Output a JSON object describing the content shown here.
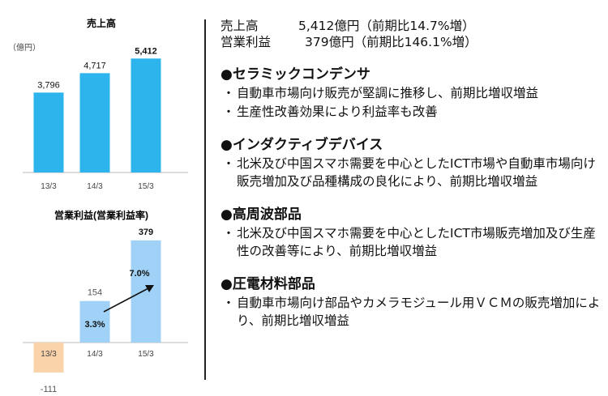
{
  "summary": [
    {
      "label": "売上高",
      "value": "5,412億円（前期比14.7%増）"
    },
    {
      "label": "営業利益",
      "value": "379億円（前期比146.1%増）"
    }
  ],
  "sections": [
    {
      "title": "●セラミックコンデンサ",
      "bullets": [
        "自動車市場向け販売が堅調に推移し、前期比増収増益",
        "生産性改善効果により利益率も改善"
      ]
    },
    {
      "title": "●インダクティブデバイス",
      "bullets": [
        "北米及び中国スマホ需要を中心としたICT市場や自動車市場向け販売増加及び品種構成の良化により、前期比増収増益"
      ]
    },
    {
      "title": "●高周波部品",
      "bullets": [
        "北米及び中国スマホ需要を中心としたICT市場販売増加及び生産性の改善等により、前期比増収増益"
      ]
    },
    {
      "title": "●圧電材料部品",
      "bullets": [
        "自動車市場向け部品やカメラモジュール用ＶＣＭの販売増加により、前期比増収増益"
      ]
    }
  ],
  "bullet_mark": "・",
  "colors": {
    "bar_blue": "#2EB4EC",
    "bar_light_blue": "#9FD2F6",
    "bar_negative": "#FAD3AA",
    "text": "#111111"
  },
  "chart_data": [
    {
      "type": "bar",
      "title": "売上高",
      "unit_label": "（億円）",
      "categories": [
        "13/3",
        "14/3",
        "15/3"
      ],
      "values": [
        3796,
        4717,
        5412
      ],
      "value_labels": [
        "3,796",
        "4,717",
        "5,412"
      ],
      "bold_labels": [
        false,
        false,
        true
      ],
      "ylim": [
        0,
        6000
      ],
      "grid": false
    },
    {
      "type": "bar",
      "title": "営業利益(営業利益率)",
      "categories": [
        "13/3",
        "14/3",
        "15/3"
      ],
      "values": [
        -111,
        154,
        379
      ],
      "value_labels": [
        "-111",
        "154",
        "379"
      ],
      "bold_labels": [
        false,
        false,
        true
      ],
      "margin_labels": [
        null,
        "3.3%",
        "7.0%"
      ],
      "annotation": "arrow from 14/3 margin to 15/3 margin",
      "ylim": [
        -150,
        420
      ],
      "grid": false
    }
  ]
}
